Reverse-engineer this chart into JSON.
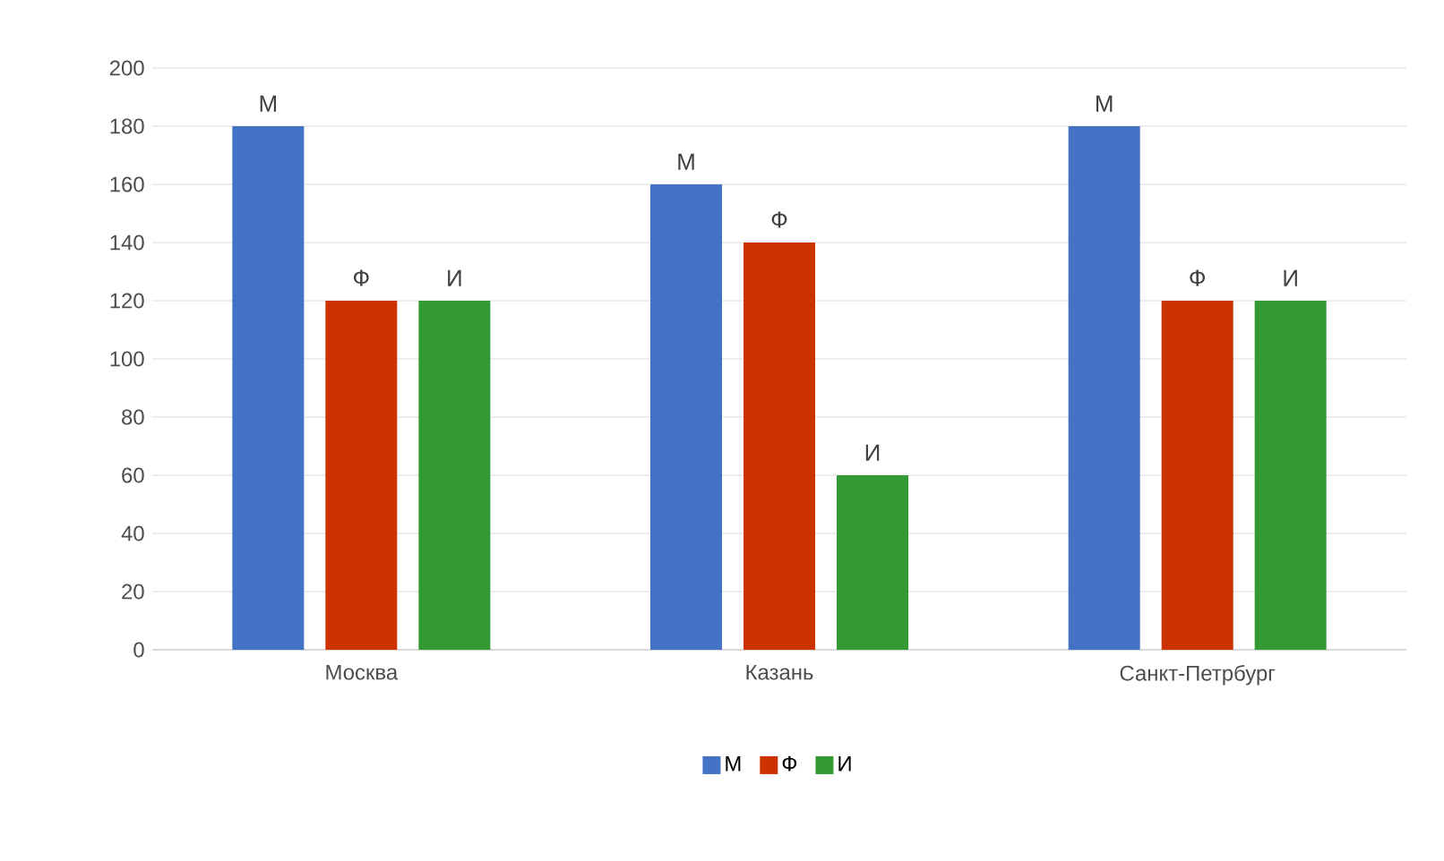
{
  "chart_data": {
    "type": "bar",
    "categories": [
      "Москва",
      "Казань",
      "Санкт-Петрбург"
    ],
    "series": [
      {
        "name": "М",
        "color": "#4472c4",
        "values": [
          180,
          160,
          180
        ]
      },
      {
        "name": "Ф",
        "color": "#cc3300",
        "values": [
          120,
          140,
          120
        ]
      },
      {
        "name": "И",
        "color": "#339933",
        "values": [
          120,
          60,
          120
        ]
      }
    ],
    "ylim": [
      0,
      200
    ],
    "yticks": [
      0,
      20,
      40,
      60,
      80,
      100,
      120,
      140,
      160,
      180,
      200
    ],
    "grid": "y",
    "legend": "bottom"
  }
}
